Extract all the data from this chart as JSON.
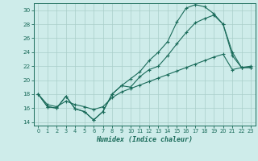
{
  "xlabel": "Humidex (Indice chaleur)",
  "background_color": "#ceecea",
  "grid_color": "#aaceca",
  "line_color": "#1a6b5a",
  "xlim": [
    -0.5,
    23.5
  ],
  "ylim": [
    13.5,
    31.0
  ],
  "yticks": [
    14,
    16,
    18,
    20,
    22,
    24,
    26,
    28,
    30
  ],
  "xticks": [
    0,
    1,
    2,
    3,
    4,
    5,
    6,
    7,
    8,
    9,
    10,
    11,
    12,
    13,
    14,
    15,
    16,
    17,
    18,
    19,
    20,
    21,
    22,
    23
  ],
  "line1_x": [
    0,
    1,
    2,
    3,
    4,
    5,
    6,
    7,
    8,
    9,
    10,
    11,
    12,
    13,
    14,
    15,
    16,
    17,
    18,
    19,
    20,
    21,
    22,
    23
  ],
  "line1_y": [
    18.0,
    16.2,
    16.0,
    17.7,
    15.9,
    15.5,
    14.3,
    15.5,
    18.0,
    19.2,
    19.0,
    20.5,
    21.5,
    22.0,
    23.5,
    25.2,
    26.8,
    28.2,
    28.8,
    29.3,
    28.0,
    23.5,
    21.8,
    21.8
  ],
  "line2_x": [
    0,
    1,
    2,
    3,
    4,
    5,
    6,
    7,
    8,
    9,
    10,
    11,
    12,
    13,
    14,
    15,
    16,
    17,
    18,
    19,
    20,
    21,
    22,
    23
  ],
  "line2_y": [
    18.0,
    16.2,
    16.0,
    17.7,
    15.9,
    15.5,
    14.3,
    15.5,
    18.0,
    19.2,
    20.2,
    21.2,
    22.8,
    24.0,
    25.5,
    28.3,
    30.3,
    30.8,
    30.5,
    29.5,
    28.0,
    24.0,
    21.8,
    21.8
  ],
  "line3_x": [
    0,
    1,
    2,
    3,
    4,
    5,
    6,
    7,
    8,
    9,
    10,
    11,
    12,
    13,
    14,
    15,
    16,
    17,
    18,
    19,
    20,
    21,
    22,
    23
  ],
  "line3_y": [
    18.0,
    16.5,
    16.2,
    17.0,
    16.5,
    16.2,
    15.8,
    16.2,
    17.5,
    18.3,
    18.8,
    19.3,
    19.8,
    20.3,
    20.8,
    21.3,
    21.8,
    22.3,
    22.8,
    23.3,
    23.7,
    21.5,
    21.8,
    22.0
  ]
}
